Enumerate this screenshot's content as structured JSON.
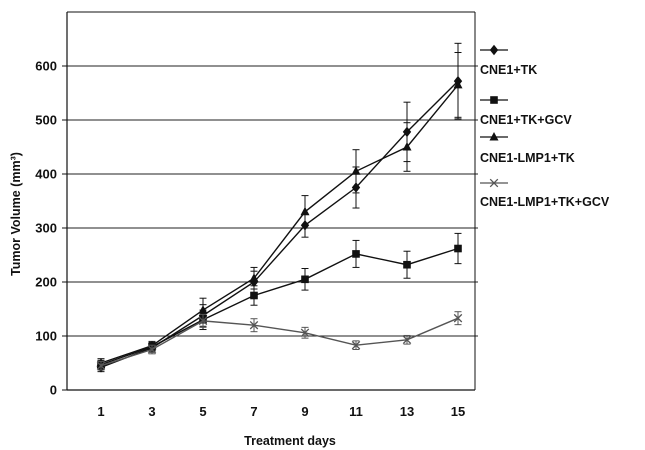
{
  "chart_data": {
    "type": "line",
    "title": "",
    "xlabel": "Treatment days",
    "ylabel": "Tumor Volume (mm³)",
    "x": [
      1,
      3,
      5,
      7,
      9,
      11,
      13,
      15
    ],
    "x_tick_labels": [
      "1",
      "3",
      "5",
      "7",
      "9",
      "11",
      "13",
      "15"
    ],
    "y_tick_labels": [
      "0",
      "100",
      "200",
      "300",
      "400",
      "500",
      "600"
    ],
    "ylim": [
      0,
      700
    ],
    "grid": "horizontal",
    "legend_position": "right",
    "series": [
      {
        "name": "CNE1+TK",
        "marker": "diamond",
        "color": "#111111",
        "values": [
          42,
          78,
          138,
          200,
          305,
          375,
          478,
          572
        ],
        "errors": [
          8,
          8,
          20,
          20,
          22,
          38,
          55,
          70
        ]
      },
      {
        "name": "CNE1+TK+GCV",
        "marker": "square",
        "color": "#111111",
        "values": [
          47,
          80,
          130,
          175,
          205,
          252,
          232,
          262
        ],
        "errors": [
          8,
          8,
          18,
          18,
          20,
          25,
          25,
          28
        ]
      },
      {
        "name": "CNE1-LMP1+TK",
        "marker": "triangle",
        "color": "#111111",
        "values": [
          50,
          82,
          148,
          207,
          330,
          405,
          450,
          565
        ],
        "errors": [
          8,
          8,
          22,
          20,
          30,
          40,
          45,
          60
        ]
      },
      {
        "name": "CNE1-LMP1+TK+GCV",
        "marker": "x",
        "color": "#555555",
        "values": [
          45,
          75,
          128,
          120,
          106,
          83,
          93,
          133
        ],
        "errors": [
          8,
          8,
          12,
          12,
          10,
          8,
          8,
          12
        ]
      }
    ]
  }
}
